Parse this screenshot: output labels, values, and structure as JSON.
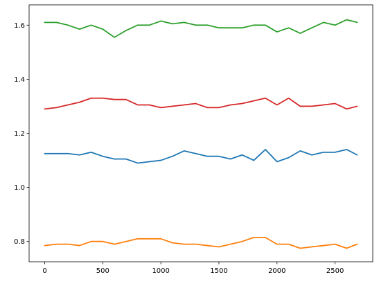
{
  "chart_data": {
    "type": "line",
    "x": [
      0,
      100,
      200,
      300,
      400,
      500,
      600,
      700,
      800,
      900,
      1000,
      1100,
      1200,
      1300,
      1400,
      1500,
      1600,
      1700,
      1800,
      1900,
      2000,
      2100,
      2200,
      2300,
      2400,
      2500,
      2600,
      2690
    ],
    "series": [
      {
        "color": "#1f77b4",
        "values": [
          1.125,
          1.125,
          1.125,
          1.12,
          1.13,
          1.115,
          1.105,
          1.105,
          1.09,
          1.095,
          1.1,
          1.115,
          1.135,
          1.125,
          1.115,
          1.115,
          1.105,
          1.12,
          1.1,
          1.14,
          1.095,
          1.11,
          1.135,
          1.12,
          1.13,
          1.13,
          1.14,
          1.12
        ]
      },
      {
        "color": "#ff7f0e",
        "values": [
          0.785,
          0.79,
          0.79,
          0.785,
          0.8,
          0.8,
          0.79,
          0.8,
          0.81,
          0.81,
          0.81,
          0.795,
          0.79,
          0.79,
          0.785,
          0.78,
          0.79,
          0.8,
          0.815,
          0.815,
          0.79,
          0.79,
          0.775,
          0.78,
          0.785,
          0.79,
          0.775,
          0.79
        ]
      },
      {
        "color": "#2ca02c",
        "values": [
          1.61,
          1.61,
          1.6,
          1.585,
          1.6,
          1.585,
          1.555,
          1.58,
          1.6,
          1.6,
          1.615,
          1.605,
          1.61,
          1.6,
          1.6,
          1.59,
          1.59,
          1.59,
          1.6,
          1.6,
          1.575,
          1.59,
          1.57,
          1.59,
          1.61,
          1.6,
          1.62,
          1.61
        ]
      },
      {
        "color": "#d62728",
        "values": [
          1.29,
          1.295,
          1.305,
          1.315,
          1.33,
          1.33,
          1.325,
          1.325,
          1.305,
          1.305,
          1.295,
          1.3,
          1.305,
          1.31,
          1.295,
          1.295,
          1.305,
          1.31,
          1.32,
          1.33,
          1.305,
          1.33,
          1.3,
          1.3,
          1.305,
          1.31,
          1.29,
          1.3
        ]
      }
    ],
    "xlim": [
      -134.5,
      2824.5
    ],
    "xticks": [
      0,
      500,
      1000,
      1500,
      2000,
      2500
    ],
    "ylim": [
      0.725,
      1.675
    ],
    "yticks": [
      0.8,
      {
        "value": 1,
        "label": "1.0"
      },
      1.2,
      1.4,
      1.6
    ],
    "grid": false
  }
}
